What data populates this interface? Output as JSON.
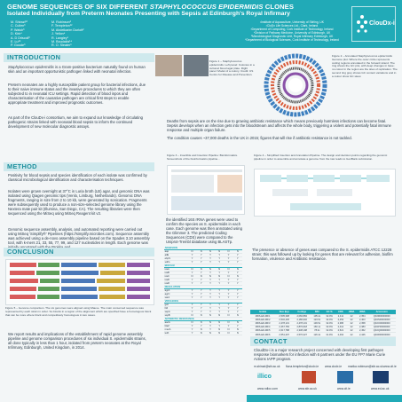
{
  "header": {
    "title_a": "GENOME SEQUENCES OF SIX DIFFERENT ",
    "title_b": "STAPHYLOCOCCUS EPIDERMIDIS",
    "title_c": " CLONES",
    "subtitle": "Isolated Individually from Preterm Neonates Presenting with Sepsis at Edinburgh's Royal Infirmary",
    "authors_col1": [
      "M. Shirazi¹²",
      "C. Cullen³",
      "P. Walsh³",
      "D. Kirk⁴",
      "A. D Driscoll³",
      "E. Lu¹⁵",
      "P. Goode³"
    ],
    "authors_col2": [
      "M. Robinson²",
      "F. Templeton¹²",
      "M. Abdelkarim Durlott²",
      "J. Yellon⁴",
      "R. Langley¹",
      "M. Boudakis¹⁴",
      "R. O. Sleater¹"
    ],
    "affiliations": [
      "¹Institute of Aquaculture, University of Stirling, UK",
      "²CloDx Life Sciences Ltd., Clark, Ireland",
      "³Department of Computing, Cork Institute of Technology, Ireland",
      "⁴Division of Pathway Medicine, University of Edinburgh, UK",
      "⁵Microbiological Diagnostic Unit, Royal Infirmary Edinburgh, UK",
      "⁶Department of Biological Sciences, Cork Institute of Technology, Ireland"
    ],
    "logo_text": "ClouDx-i"
  },
  "sections": {
    "introduction": "INTRODUCTION",
    "method": "METHOD",
    "conclusion": "CONCLUSION",
    "contact": "CONTACT"
  },
  "intro": {
    "p1_italic": "Staphylococcus epidermidis",
    "p1_rest": " is a Gram-positive bacterium naturally found on human skin and an important opportunistic pathogen linked with neonatal infection.",
    "p2": "Preterm neonates are a highly susceptible patient group for bacterial infections, due to their naive immune status and the invasive procedures to which they are often subjected to in neonatal ICU settings. Rapid detection of blood inpos and characterisation of the causative pathogen are critical first steps to enable appropriate treatment and improved prognostic outcomes.",
    "p3": "As part of the ClouDx-i consortium, we aim to expand our knowledge of circulating pathogenic strains linked with neonatal blood sepsis to inform the continued development of new molecular diagnostic assays."
  },
  "figures": {
    "fig1_caption": "Figure 1 – Staphylococcus epidermidis. Left panel: Colonies in a cultured blood agar plate. Right panel: Model of a colony. Credit: US Centre for Disease and Prevention.",
    "fig2_caption": "Figure 2 – Annotated Staphylococcus epidermidis Genome plot. Where the outer circle represents coding regions annotated in the forward strand. The ring shows the GC plot, with deep changes in base; no colour in the region are the sites of replication. The second ring grey shows GC content variations and in a colour show GC skew.",
    "fig3_caption": "Figure 3 – Insertible and Insertion Pipeline: Bioinformatics. Screenshots of the bioinformatics pipeline...",
    "fig4_caption": "Figure 4 – Simplified Insertion and Annotation Pipeline. The design and decision points regarding the genomic pipeline in order to assemble and annotate a genome from the raw reads to GenBank submission.",
    "fig5_caption": "Figure 5 – Genome comparison. The six genomes were aligned using Mauve. The main conserved sequence was represented by each strain in order. So blocks in a region of the alignment which are specified have a homologous block that can be more where block and competitively homologous in two cases."
  },
  "context": {
    "p1": "Deaths from sepsis are on the rise due to growing antibiotic resistance which means previously harmless infections can become fatal. Sepsis develops when an infection gets into the bloodstream and affects the whole body, triggering a violent and potentially fatal immune response and multiple organ failure.",
    "p2": "The condition causes ~37,000 deaths in the UK in 2015; figures that will rise if antibiotic resistance is not tackled."
  },
  "method": {
    "p1": "Positivity for blood sepsis and species identification of each isolate was confirmed by classical microbiological identification and characterisation techniques.",
    "p2": "Isolates were grown overnight at 37°C in Luria broth (LB) agar, and genomic DNA was isolated using Qiagen genomic tips (Venlo, Limburg, Netherlands). Genomic DNA fragments, ranging in size from 2 to 10 kb, were generated by sonication. Fragments were subsequently used to produce a non-size-selected genome library using the Nextera mate pair kit (Illumina, San Diego, CA). The resulting libraries were then sequenced using the MiSeq using MiSeq Reagent kit v3.",
    "p3": "Genomic sequence assembly, analysis, and automated reporting were carried out using MiSeq 'Simplify®' Pipelines (https://simplify.microbes.com). Sequence assembly was achieved using a de-novo assembly pipeline based on the Spades 3.10 assembly tool, with k-mers 21, 33, 55, 77, 99, and 127 nucleotides in length. Each genome was initially annotated with the Prokka and",
    "p4": "the identified 16S rRNA genes were used to confirm the species as S. epidermidis in each case. Each genome was then annotated using the Glimmer 3. The predicted Coding Sequences (CDS) were compared to the Uniprot-Trembl database using BLASTp."
  },
  "presence": {
    "text": "The presence or absence of genes was compared to the S. epidermidis ATCC 12228 strain; this was followed up by looking for genes that are relevant for adhesion, biofilm formation, virulence and Antibiotic resistance."
  },
  "virulence_table": {
    "groups": [
      {
        "name": "ADHESION",
        "rows": [
          [
            "aap",
            "N",
            "N",
            "N",
            "N",
            "N",
            "N"
          ],
          [
            "atlE",
            "Y",
            "Y",
            "Y",
            "Y",
            "Y",
            "Y"
          ],
          [
            "ebpS",
            "Y",
            "Y",
            "Y",
            "Y",
            "Y",
            "Y"
          ],
          [
            "sdrG",
            "Y",
            "Y",
            "Y",
            "Y",
            "Y",
            "Y"
          ]
        ]
      },
      {
        "name": "BIOFILM",
        "rows": [
          [
            "icaA",
            "N",
            "N",
            "N",
            "N",
            "N",
            "N"
          ],
          [
            "icaB",
            "Y",
            "Y",
            "Y",
            "Y",
            "Y",
            "Y"
          ],
          [
            "icaC",
            "N",
            "N",
            "N",
            "N",
            "N",
            "N"
          ],
          [
            "icaD",
            "Y",
            "Y",
            "Y",
            "Y",
            "Y",
            "Y"
          ],
          [
            "icaR",
            "Y",
            "Y",
            "Y",
            "Y",
            "Y",
            "Y"
          ]
        ]
      },
      {
        "name": "REGULATION",
        "rows": [
          [
            "agrA",
            "Y",
            "Y",
            "Y",
            "Y",
            "Y",
            "Y"
          ],
          [
            "agrC",
            "Y",
            "Y",
            "Y",
            "Y",
            "Y",
            "Y"
          ],
          [
            "sarA",
            "Y",
            "Y",
            "Y",
            "Y",
            "Y",
            "Y"
          ]
        ]
      },
      {
        "name": "VIRULENCE",
        "rows": [
          [
            "geh",
            "Y",
            "Y",
            "Y",
            "Y",
            "Y",
            "Y"
          ],
          [
            "hld",
            "Y",
            "Y",
            "Y",
            "Y",
            "Y",
            "Y"
          ],
          [
            "sepA",
            "Y",
            "Y",
            "Y",
            "Y",
            "Y",
            "Y"
          ],
          [
            "sspB",
            "N",
            "N",
            "N",
            "N",
            "N",
            "N"
          ]
        ]
      },
      {
        "name": "ANTIBIOTIC RESISTANCE",
        "rows": [
          [
            "aacA",
            "N",
            "N",
            "N",
            "N",
            "N",
            "N"
          ],
          [
            "blaZ",
            "Y",
            "Y",
            "Y",
            "Y",
            "Y",
            "Y"
          ],
          [
            "mecA",
            "Y",
            "N",
            "Y",
            "N",
            "N",
            "N"
          ],
          [
            "tetK",
            "Y",
            "N",
            "N",
            "N",
            "N",
            "N"
          ]
        ]
      }
    ]
  },
  "stats_table": {
    "headers": [
      "Isolate",
      "Size (bp)",
      "Contigs",
      "N50",
      "GC %",
      "CDS",
      "rRNA",
      "tRNA",
      "Accession"
    ],
    "rows": [
      [
        "MDS-ED-RIF1",
        "2,505,398",
        "2,066,884",
        "105.2x",
        "32.0%",
        "2,411",
        "22",
        "2,354",
        "QDJM00000000"
      ],
      [
        "MDS-ED-RIF2",
        "2,532,436",
        "2,186,902",
        "123.5x",
        "32.0%",
        "2,453",
        "22",
        "2,403",
        "QDJN00000000"
      ],
      [
        "MDS-ED-RIF3",
        "2,478,131",
        "2,478,131",
        "139.5x",
        "32.0%",
        "2,386",
        "22",
        "2,358",
        "QDJO00000000"
      ],
      [
        "MDS-ED-RIF4",
        "2,467,783",
        "2,876,618",
        "160.1x",
        "32.0%",
        "2,412",
        "22",
        "2,383",
        "QDJP00000000"
      ],
      [
        "MDS-ED-RIF5",
        "2,617,788",
        "2,338,198",
        "78.0x",
        "32.0%",
        "2,521",
        "22",
        "2,452",
        "QDJQ00000000"
      ],
      [
        "MDS-ED-RIF6",
        "2,551,207",
        "2,576,327",
        "126.4x",
        "31.9%",
        "2,464",
        "22",
        "2,446",
        "QDJR00000000"
      ]
    ]
  },
  "conclusion": {
    "p1": "We report results and implications of the establishment of rapid genome assembly pipeline and genome comparison procedures of six individual S. epidermidis strains, all done typically in less than 1 hour, isolated from preterm neonates at the Royal Infirmary, Edinburgh, United Kingdom, in 2014."
  },
  "contact": {
    "text": "CloudDx-i is a major research project concerned with developing first pathogen response biomarkers for infection with 6 partners under the EU FP7 Marie Curie Actions IAPP program.",
    "links": [
      "m.shirazi@stir.ac.uk",
      "fiona.templeton@clodx.ie",
      "www.clodx.ie",
      "marika.robinson@stir.ac.uk",
      "www.cit.ie"
    ],
    "footer_links": [
      "www.ndloc.com",
      "www.stir.ac.uk",
      "www.cit.ie",
      "www.ed.ac.uk"
    ],
    "partner_logo": "illico"
  }
}
